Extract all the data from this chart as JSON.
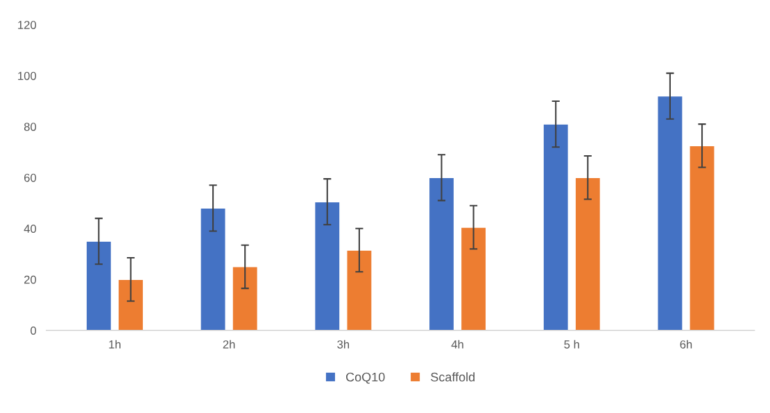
{
  "chart_data": {
    "type": "bar",
    "categories": [
      "1h",
      "2h",
      "3h",
      "4h",
      "5 h",
      "6h"
    ],
    "series": [
      {
        "name": "CoQ10",
        "color": "#4472c4",
        "values": [
          35,
          48,
          50.5,
          60,
          81,
          92
        ],
        "errors": [
          9,
          9,
          9,
          9,
          9,
          9
        ]
      },
      {
        "name": "Scaffold",
        "color": "#ed7d31",
        "values": [
          20,
          25,
          31.5,
          40.5,
          60,
          72.5
        ],
        "errors": [
          8.5,
          8.5,
          8.5,
          8.5,
          8.5,
          8.5
        ]
      }
    ],
    "ylim": [
      0,
      120
    ],
    "yticks": [
      0,
      20,
      40,
      60,
      80,
      100,
      120
    ],
    "grid": false,
    "legend": "bottom"
  }
}
